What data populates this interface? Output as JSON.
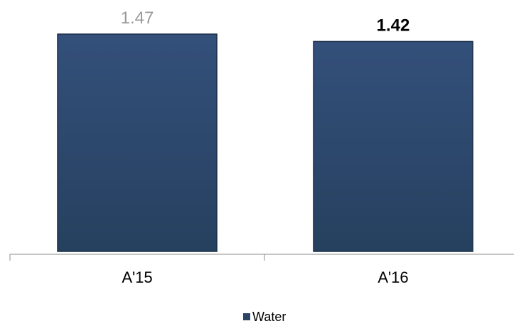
{
  "chart_data": {
    "type": "bar",
    "categories": [
      "A'15",
      "A'16"
    ],
    "series": [
      {
        "name": "Water",
        "values": [
          1.47,
          1.42
        ]
      }
    ],
    "data_labels": [
      "1.47",
      "1.42"
    ],
    "ylim": [
      0,
      1.47
    ],
    "grid": false,
    "legend_position": "bottom",
    "bar_color": "#2c4466",
    "label_colors": [
      "#9a9a9a",
      "#000000"
    ]
  }
}
